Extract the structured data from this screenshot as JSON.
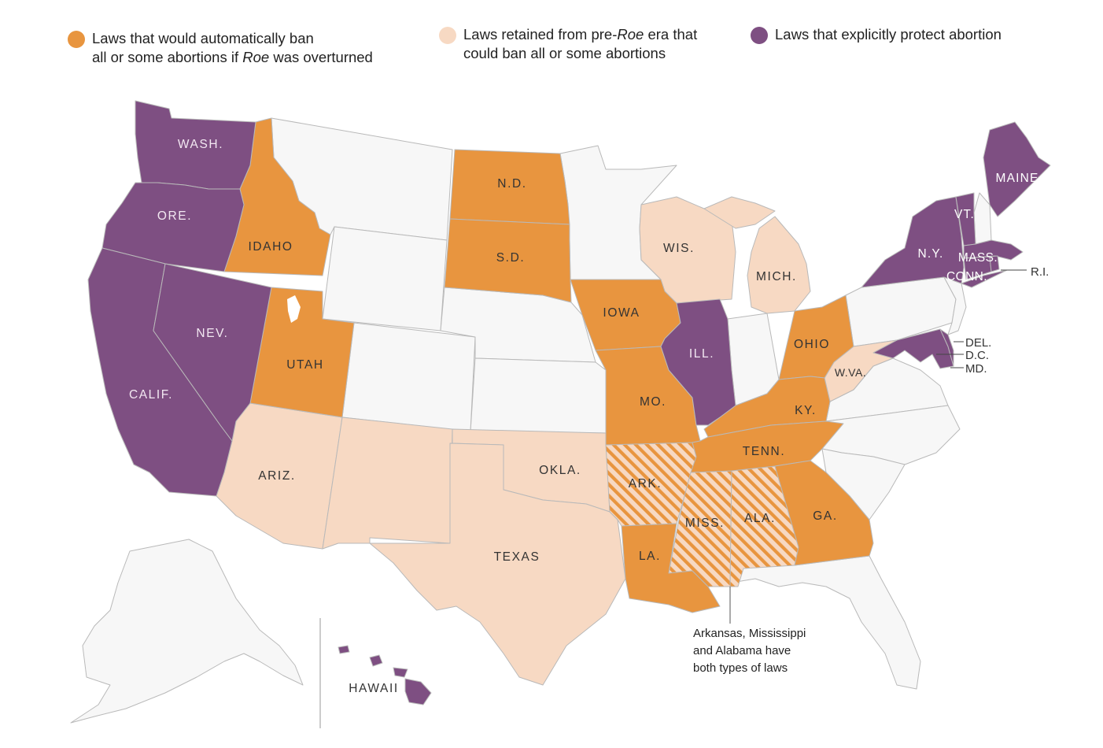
{
  "legend": {
    "auto_ban": {
      "color": "#e8953f",
      "line1": "Laws that would automatically ban",
      "line2_pre": "all or some abortions if ",
      "line2_em": "Roe",
      "line2_post": " was overturned"
    },
    "pre_roe": {
      "color": "#f7d9c3",
      "line1_pre": "Laws retained from pre-",
      "line1_em": "Roe",
      "line1_post": " era that",
      "line2": "could ban all or some abortions"
    },
    "protect": {
      "color": "#7e4f82",
      "line1": "Laws that explicitly protect abortion"
    }
  },
  "colors": {
    "none": "#f7f7f7",
    "border": "#b9b9b9",
    "hatch_base": "#f7d9c3",
    "hatch_line": "#e8953f"
  },
  "states": {
    "wa": "WASH.",
    "or": "ORE.",
    "ca": "CALIF.",
    "nv": "NEV.",
    "id": "IDAHO",
    "ut": "UTAH",
    "az": "ARIZ.",
    "nd": "N.D.",
    "sd": "S.D.",
    "ia": "IOWA",
    "mo": "MO.",
    "ar": "ARK.",
    "la": "LA.",
    "ok": "OKLA.",
    "tx": "TEXAS",
    "wi": "WIS.",
    "mi": "MICH.",
    "il": "ILL.",
    "oh": "OHIO",
    "ky": "KY.",
    "tn": "TENN.",
    "ms": "MISS.",
    "al": "ALA.",
    "ga": "GA.",
    "wv": "W.VA.",
    "ny": "N.Y.",
    "vt": "VT.",
    "me": "MAINE",
    "ma": "MASS.",
    "ct": "CONN.",
    "ri": "R.I.",
    "de": "DEL.",
    "dc": "D.C.",
    "md": "MD.",
    "hi": "HAWAII"
  },
  "annotation": {
    "line1": "Arkansas, Mississippi",
    "line2": "and Alabama have",
    "line3": "both types of laws"
  }
}
